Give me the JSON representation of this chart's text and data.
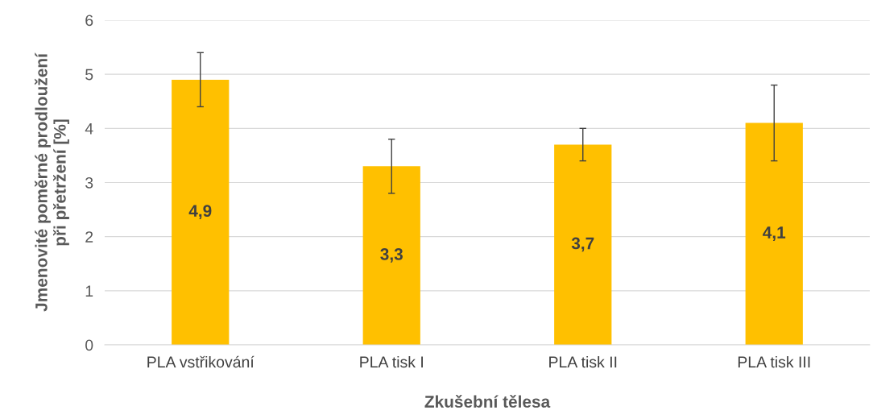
{
  "chart_data": {
    "type": "bar",
    "xlabel": "Zkušební tělesa",
    "ylabel": "Jmenovité poměrné prodloužení\npři přetržení [%]",
    "categories": [
      "PLA vstřikování",
      "PLA tisk I",
      "PLA tisk II",
      "PLA tisk III"
    ],
    "values": [
      4.9,
      3.3,
      3.7,
      4.1
    ],
    "color": "#ffc000",
    "errors": [
      0.5,
      0.5,
      0.3,
      0.7
    ],
    "value_labels": [
      "4,9",
      "3,3",
      "3,7",
      "4,1"
    ],
    "ylim": [
      0,
      6
    ],
    "yticks": [
      0,
      1,
      2,
      3,
      4,
      5,
      6
    ],
    "grid": "y"
  }
}
